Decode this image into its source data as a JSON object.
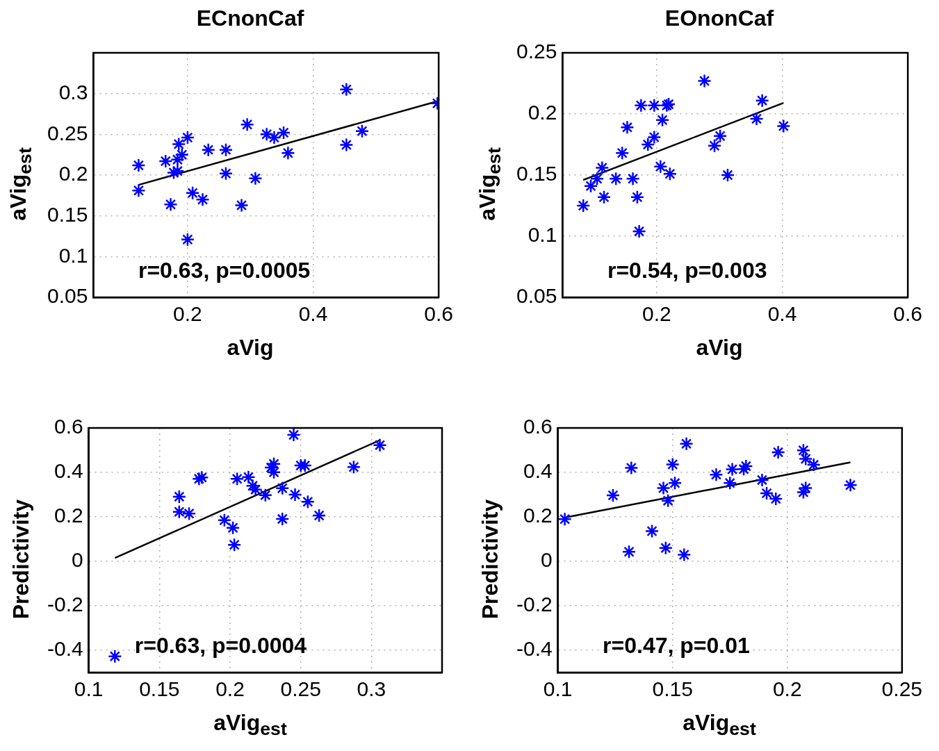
{
  "chart_data": [
    {
      "type": "scatter",
      "title": "ECnonCaf",
      "xlabel": "aVig",
      "ylabel": "aVig$_{est}$",
      "xlim": [
        0.05,
        0.6
      ],
      "xticks": [
        0.2,
        0.4,
        0.6
      ],
      "ylim": [
        0.05,
        0.35
      ],
      "yticks": [
        0.05,
        0.1,
        0.15,
        0.2,
        0.25,
        0.3
      ],
      "grid": true,
      "legend": false,
      "annotations": [
        "r=0.63, p=0.0005"
      ],
      "series": [
        {
          "color": "#0000ff",
          "marker": "cross",
          "x": [
            0.122,
            0.122,
            0.165,
            0.173,
            0.178,
            0.184,
            0.184,
            0.186,
            0.191,
            0.2,
            0.2,
            0.208,
            0.224,
            0.233,
            0.261,
            0.261,
            0.286,
            0.295,
            0.308,
            0.326,
            0.338,
            0.353,
            0.36,
            0.453,
            0.453,
            0.478,
            0.598
          ],
          "values": [
            0.212,
            0.181,
            0.217,
            0.164,
            0.203,
            0.205,
            0.219,
            0.238,
            0.225,
            0.246,
            0.121,
            0.178,
            0.17,
            0.231,
            0.231,
            0.202,
            0.163,
            0.262,
            0.196,
            0.25,
            0.246,
            0.252,
            0.227,
            0.305,
            0.237,
            0.254,
            0.288
          ]
        },
        {
          "type": "line",
          "color": "#000000",
          "marker": "none",
          "line_style": "solid",
          "x": [
            0.122,
            0.6
          ],
          "values": [
            0.188,
            0.291
          ]
        }
      ]
    },
    {
      "type": "scatter",
      "title": "EOnonCaf",
      "xlabel": "aVig",
      "ylabel": "aVig$_{est}$",
      "xlim": [
        0.05,
        0.6
      ],
      "xticks": [
        0.2,
        0.4,
        0.6
      ],
      "ylim": [
        0.05,
        0.25
      ],
      "yticks": [
        0.05,
        0.1,
        0.15,
        0.2,
        0.25
      ],
      "grid": true,
      "legend": false,
      "annotations": [
        "r=0.54, p=0.003"
      ],
      "series": [
        {
          "color": "#0000ff",
          "marker": "cross",
          "x": [
            0.083,
            0.095,
            0.105,
            0.113,
            0.116,
            0.135,
            0.145,
            0.153,
            0.162,
            0.169,
            0.172,
            0.175,
            0.186,
            0.196,
            0.196,
            0.206,
            0.209,
            0.216,
            0.219,
            0.221,
            0.276,
            0.292,
            0.301,
            0.313,
            0.359,
            0.368,
            0.402
          ],
          "values": [
            0.125,
            0.141,
            0.147,
            0.156,
            0.132,
            0.147,
            0.168,
            0.189,
            0.147,
            0.132,
            0.104,
            0.207,
            0.175,
            0.181,
            0.207,
            0.157,
            0.195,
            0.207,
            0.208,
            0.151,
            0.227,
            0.174,
            0.182,
            0.15,
            0.196,
            0.211,
            0.19
          ]
        },
        {
          "type": "line",
          "color": "#000000",
          "marker": "none",
          "line_style": "solid",
          "x": [
            0.083,
            0.402
          ],
          "values": [
            0.146,
            0.209
          ]
        }
      ]
    },
    {
      "type": "scatter",
      "xlabel": "aVig$_{est}$",
      "ylabel": "Predictivity",
      "xlim": [
        0.1,
        0.35
      ],
      "xticks": [
        0.1,
        0.15,
        0.2,
        0.25,
        0.3
      ],
      "ylim": [
        -0.5,
        0.6
      ],
      "yticks": [
        -0.4,
        -0.2,
        0,
        0.2,
        0.4,
        0.6
      ],
      "grid": true,
      "legend": false,
      "annotations": [
        "r=0.63, p=0.0004"
      ],
      "series": [
        {
          "color": "#0000ff",
          "marker": "cross",
          "x": [
            0.1185,
            0.164,
            0.164,
            0.171,
            0.178,
            0.18,
            0.196,
            0.202,
            0.203,
            0.205,
            0.213,
            0.216,
            0.218,
            0.225,
            0.229,
            0.231,
            0.231,
            0.237,
            0.237,
            0.245,
            0.246,
            0.25,
            0.253,
            0.255,
            0.263,
            0.2875,
            0.306
          ],
          "values": [
            -0.427,
            0.291,
            0.223,
            0.215,
            0.371,
            0.377,
            0.185,
            0.151,
            0.074,
            0.371,
            0.379,
            0.34,
            0.323,
            0.298,
            0.422,
            0.438,
            0.401,
            0.329,
            0.191,
            0.569,
            0.3,
            0.431,
            0.431,
            0.268,
            0.206,
            0.424,
            0.523
          ]
        },
        {
          "type": "line",
          "color": "#000000",
          "marker": "none",
          "line_style": "solid",
          "x": [
            0.1185,
            0.306
          ],
          "values": [
            0.015,
            0.545
          ]
        }
      ]
    },
    {
      "type": "scatter",
      "xlabel": "aVig$_{est}$",
      "ylabel": "Predictivity",
      "xlim": [
        0.1,
        0.25
      ],
      "xticks": [
        0.1,
        0.15,
        0.2,
        0.25
      ],
      "ylim": [
        -0.5,
        0.6
      ],
      "yticks": [
        -0.4,
        -0.2,
        0,
        0.2,
        0.4,
        0.6
      ],
      "grid": true,
      "legend": false,
      "annotations": [
        "r=0.47, p=0.01"
      ],
      "series": [
        {
          "color": "#0000ff",
          "marker": "cross",
          "x": [
            0.103,
            0.124,
            0.131,
            0.132,
            0.141,
            0.146,
            0.147,
            0.148,
            0.15,
            0.151,
            0.155,
            0.156,
            0.169,
            0.175,
            0.176,
            0.181,
            0.182,
            0.189,
            0.191,
            0.195,
            0.196,
            0.207,
            0.208,
            0.207,
            0.208,
            0.2115,
            0.2275
          ],
          "values": [
            0.19,
            0.297,
            0.043,
            0.42,
            0.136,
            0.33,
            0.06,
            0.273,
            0.436,
            0.352,
            0.03,
            0.529,
            0.39,
            0.352,
            0.414,
            0.415,
            0.428,
            0.366,
            0.306,
            0.281,
            0.491,
            0.499,
            0.461,
            0.311,
            0.33,
            0.434,
            0.343
          ]
        },
        {
          "type": "line",
          "color": "#000000",
          "marker": "none",
          "line_style": "solid",
          "x": [
            0.103,
            0.2275
          ],
          "values": [
            0.197,
            0.445
          ]
        }
      ]
    }
  ]
}
